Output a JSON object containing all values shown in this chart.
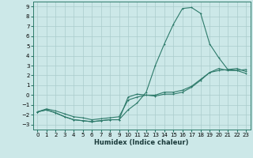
{
  "xlabel": "Humidex (Indice chaleur)",
  "bg_color": "#cce8e8",
  "grid_color": "#aacccc",
  "line_color": "#2d7a6a",
  "xlim": [
    -0.5,
    23.5
  ],
  "ylim": [
    -3.5,
    9.5
  ],
  "xticks": [
    0,
    1,
    2,
    3,
    4,
    5,
    6,
    7,
    8,
    9,
    10,
    11,
    12,
    13,
    14,
    15,
    16,
    17,
    18,
    19,
    20,
    21,
    22,
    23
  ],
  "yticks": [
    -3,
    -2,
    -1,
    0,
    1,
    2,
    3,
    4,
    5,
    6,
    7,
    8,
    9
  ],
  "line1_x": [
    0,
    1,
    2,
    3,
    4,
    5,
    6,
    7,
    8,
    9,
    10,
    11,
    12,
    13,
    14,
    15,
    16,
    17,
    18,
    19,
    20,
    21,
    22,
    23
  ],
  "line1_y": [
    -1.7,
    -1.5,
    -1.8,
    -2.2,
    -2.5,
    -2.6,
    -2.7,
    -2.6,
    -2.5,
    -2.5,
    -1.5,
    -0.8,
    0.3,
    3.0,
    5.2,
    7.2,
    8.8,
    8.9,
    8.3,
    5.2,
    3.8,
    2.6,
    2.5,
    2.6
  ],
  "line2_x": [
    0,
    1,
    2,
    3,
    4,
    5,
    6,
    7,
    8,
    9,
    10,
    11,
    12,
    13,
    14,
    15,
    16,
    17,
    18,
    19,
    20,
    21,
    22,
    23
  ],
  "line2_y": [
    -1.7,
    -1.5,
    -1.8,
    -2.2,
    -2.5,
    -2.6,
    -2.7,
    -2.6,
    -2.5,
    -2.5,
    -0.2,
    0.1,
    0.0,
    -0.1,
    0.1,
    0.1,
    0.3,
    0.8,
    1.5,
    2.3,
    2.7,
    2.5,
    2.5,
    2.2
  ],
  "line3_x": [
    0,
    1,
    2,
    3,
    4,
    5,
    6,
    7,
    8,
    9,
    10,
    11,
    12,
    13,
    14,
    15,
    16,
    17,
    18,
    19,
    20,
    21,
    22,
    23
  ],
  "line3_y": [
    -1.7,
    -1.4,
    -1.6,
    -1.9,
    -2.2,
    -2.3,
    -2.5,
    -2.4,
    -2.3,
    -2.2,
    -0.5,
    -0.2,
    0.0,
    0.0,
    0.3,
    0.3,
    0.5,
    0.9,
    1.6,
    2.3,
    2.5,
    2.6,
    2.7,
    2.4
  ],
  "tick_fontsize": 5,
  "xlabel_fontsize": 6,
  "lw": 0.8,
  "ms": 2.0
}
